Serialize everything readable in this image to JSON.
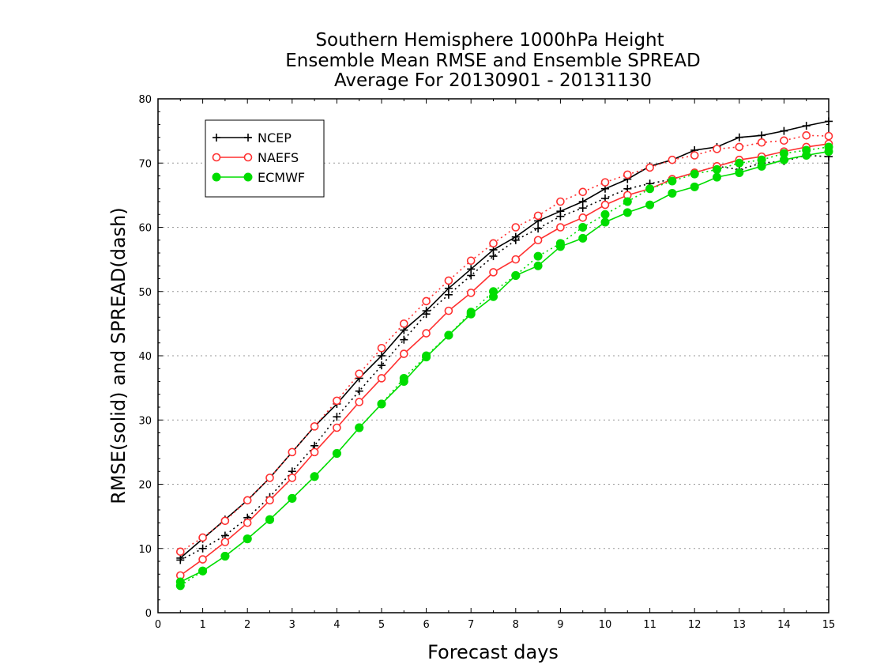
{
  "chart_data": {
    "type": "line",
    "title_lines": [
      "Southern Hemisphere 1000hPa Height",
      "Ensemble Mean RMSE and Ensemble SPREAD",
      "Average For 20130901 - 20131130"
    ],
    "xlabel": "Forecast days",
    "ylabel": "RMSE(solid) and SPREAD(dash)",
    "xlim": [
      0,
      15
    ],
    "ylim": [
      0,
      80
    ],
    "xticks": [
      "0",
      "1",
      "2",
      "3",
      "4",
      "5",
      "6",
      "7",
      "8",
      "9",
      "10",
      "11",
      "12",
      "13",
      "14",
      "15"
    ],
    "yticks": [
      "0",
      "10",
      "20",
      "30",
      "40",
      "50",
      "60",
      "70",
      "80"
    ],
    "grid": "horizontal dotted",
    "legend_position": "top-left",
    "x": [
      0.5,
      1,
      1.5,
      2,
      2.5,
      3,
      3.5,
      4,
      4.5,
      5,
      5.5,
      6,
      6.5,
      7,
      7.5,
      8,
      8.5,
      9,
      9.5,
      10,
      10.5,
      11,
      11.5,
      12,
      12.5,
      13,
      13.5,
      14,
      14.5,
      15
    ],
    "series": [
      {
        "name": "NCEP",
        "color": "#000000",
        "marker": "plus",
        "rmse": [
          8.5,
          11.5,
          14.5,
          17.5,
          21,
          25,
          29,
          32.5,
          36.5,
          40,
          44,
          47,
          50.5,
          53.5,
          56.5,
          58.5,
          61,
          62.5,
          64,
          66,
          67.5,
          69.5,
          70.5,
          72,
          72.5,
          74,
          74.3,
          75,
          75.8,
          76.5
        ],
        "spread": [
          8.2,
          10,
          12,
          14.8,
          18,
          22,
          26,
          30.5,
          34.5,
          38.5,
          42.5,
          46.5,
          49.5,
          52.5,
          55.5,
          58,
          59.8,
          61.7,
          63,
          64.5,
          66,
          66.8,
          67.5,
          68.5,
          69.5,
          69,
          70,
          70.3,
          71.2,
          71
        ]
      },
      {
        "name": "NAEFS",
        "color": "#ff3030",
        "marker": "circle-open",
        "rmse": [
          5.8,
          8.3,
          11,
          14,
          17.5,
          21,
          25,
          28.8,
          32.8,
          36.5,
          40.3,
          43.5,
          47,
          49.8,
          53,
          55,
          58,
          60,
          61.5,
          63.5,
          65,
          66,
          67.5,
          68.5,
          69.5,
          70.5,
          71,
          71.8,
          72.5,
          73
        ],
        "spread": [
          9.5,
          11.7,
          14.3,
          17.5,
          21,
          25,
          29,
          33,
          37.2,
          41.2,
          45,
          48.5,
          51.7,
          54.8,
          57.5,
          60,
          61.8,
          64,
          65.5,
          67,
          68.2,
          69.3,
          70.5,
          71.2,
          72.2,
          72.5,
          73.2,
          73.5,
          74.3,
          74.2
        ]
      },
      {
        "name": "ECMWF",
        "color": "#00dd00",
        "marker": "circle-filled",
        "rmse": [
          4.8,
          6.5,
          8.8,
          11.5,
          14.5,
          17.8,
          21.2,
          24.8,
          28.8,
          32.5,
          36,
          39.8,
          43.2,
          46.5,
          49.2,
          52.5,
          54,
          57,
          58.3,
          60.8,
          62.3,
          63.5,
          65.3,
          66.3,
          67.8,
          68.5,
          69.5,
          70.5,
          71.2,
          71.8
        ],
        "spread": [
          4.2,
          6.5,
          8.8,
          11.5,
          14.5,
          17.8,
          21.2,
          24.8,
          28.8,
          32.5,
          36.5,
          40,
          43.2,
          46.8,
          50,
          52.5,
          55.5,
          57.5,
          60,
          62,
          64,
          66,
          67.2,
          68.3,
          69,
          70,
          70.5,
          71.5,
          72,
          72.5
        ]
      }
    ]
  }
}
